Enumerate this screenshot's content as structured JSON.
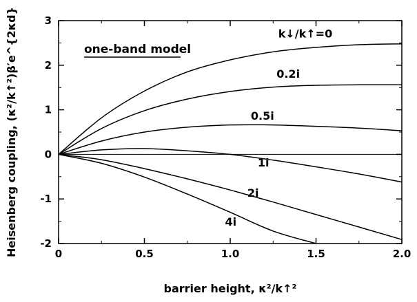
{
  "chart_data": {
    "type": "line",
    "xlabel": "barrier height, κ²/k↑²",
    "ylabel": "Heisenberg coupling, (κ²/k↑²)β′e^{2κd}",
    "xlim": [
      0,
      2.0
    ],
    "ylim": [
      -2,
      3
    ],
    "x_ticks": [
      "0",
      "0.5",
      "1.0",
      "1.5",
      "2.0"
    ],
    "y_ticks": [
      "-2",
      "-1",
      "0",
      "1",
      "2",
      "3"
    ],
    "grid": false,
    "legend": "none",
    "annotation": "one-band model",
    "series": [
      {
        "name": "k↓/k↑=0",
        "x": [
          0,
          0.25,
          0.5,
          0.75,
          1.0,
          1.25,
          1.5,
          1.75,
          2.0
        ],
        "y": [
          0,
          0.82,
          1.42,
          1.85,
          2.12,
          2.3,
          2.4,
          2.46,
          2.48
        ]
      },
      {
        "name": "0.2i",
        "x": [
          0,
          0.25,
          0.5,
          0.75,
          1.0,
          1.25,
          1.5,
          1.75,
          2.0
        ],
        "y": [
          0,
          0.58,
          0.98,
          1.24,
          1.41,
          1.51,
          1.55,
          1.56,
          1.56
        ]
      },
      {
        "name": "0.5i",
        "x": [
          0,
          0.25,
          0.5,
          0.75,
          1.0,
          1.25,
          1.5,
          1.75,
          2.0
        ],
        "y": [
          0,
          0.3,
          0.5,
          0.61,
          0.66,
          0.66,
          0.63,
          0.59,
          0.53
        ]
      },
      {
        "name": "1i",
        "x": [
          0,
          0.25,
          0.5,
          0.75,
          1.0,
          1.25,
          1.5,
          1.75,
          2.0
        ],
        "y": [
          0,
          0.1,
          0.13,
          0.08,
          0,
          -0.13,
          -0.28,
          -0.44,
          -0.62
        ]
      },
      {
        "name": "2i",
        "x": [
          0,
          0.25,
          0.5,
          0.75,
          1.0,
          1.25,
          1.5,
          1.75,
          2.0
        ],
        "y": [
          0,
          -0.12,
          -0.32,
          -0.55,
          -0.8,
          -1.07,
          -1.35,
          -1.63,
          -1.91
        ]
      },
      {
        "name": "4i",
        "x": [
          0,
          0.25,
          0.5,
          0.75,
          1.0,
          1.25,
          1.5
        ],
        "y": [
          0,
          -0.2,
          -0.51,
          -0.89,
          -1.3,
          -1.72,
          -2.0
        ]
      }
    ]
  }
}
